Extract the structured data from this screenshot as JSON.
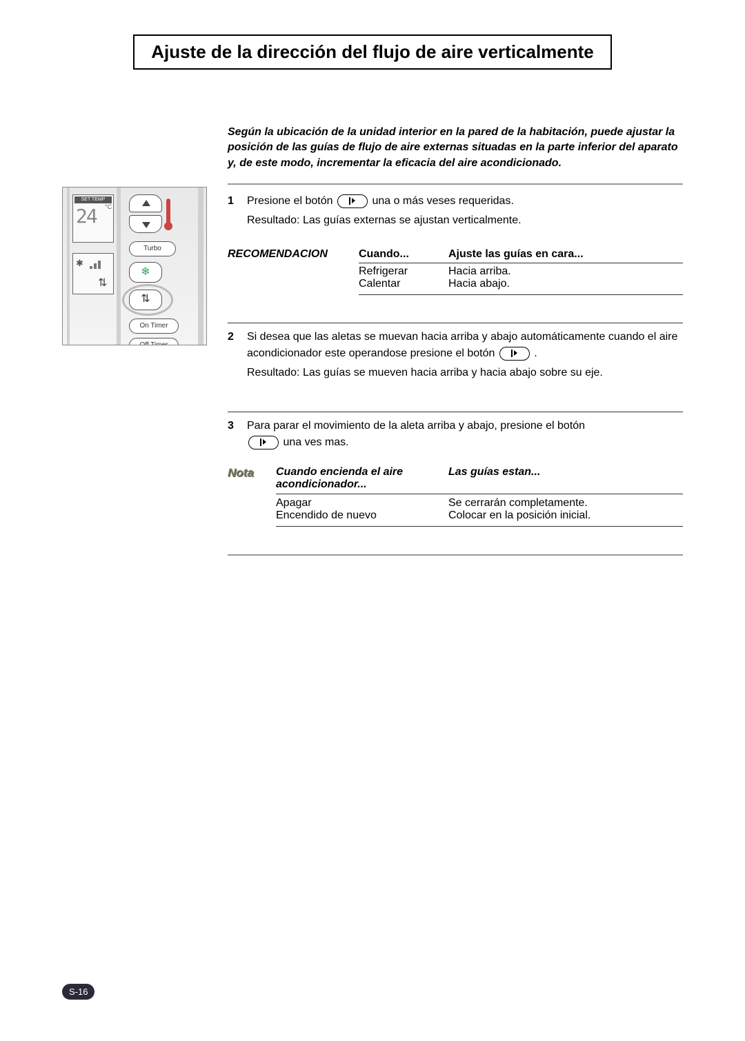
{
  "title": "Ajuste de la dirección del flujo de aire verticalmente",
  "intro": "Según la ubicación de la unidad interior en la pared de la habitación, puede ajustar la posición de las guías de flujo de aire externas situadas en la parte inferior del aparato y, de este modo, incrementar la eficacia del aire acondicionado.",
  "step1": {
    "num": "1",
    "line1a": "Presione el botón ",
    "line1b": " una o más veses requeridas.",
    "line2": "Resultado: Las guías externas se ajustan verticalmente."
  },
  "rec": {
    "label": "RECOMENDACION",
    "h1": "Cuando...",
    "h2": "Ajuste las guías en cara...",
    "rows": [
      {
        "c1": "Refrigerar",
        "c2": "Hacia arriba."
      },
      {
        "c1": "Calentar",
        "c2": "Hacia abajo."
      }
    ]
  },
  "step2": {
    "num": "2",
    "p1a": "Si desea que las aletas se muevan hacia arriba y abajo automáticamente cuando el aire acondicionador este operandose presione el botón ",
    "p1b": " .",
    "p2": "Resultado: Las guías se mueven hacia arriba y hacia abajo sobre su eje."
  },
  "step3": {
    "num": "3",
    "p1a": "Para parar el movimiento de la aleta arriba y abajo, presione el botón",
    "p1b": " una ves mas."
  },
  "nota": {
    "label": "Nota",
    "h1": "Cuando encienda el aire acondicionador...",
    "h2": "Las guías estan...",
    "rows": [
      {
        "c1": "Apagar",
        "c2": "Se cerrarán completamente."
      },
      {
        "c1": "Encendido de nuevo",
        "c2": "Colocar en la posición inicial."
      }
    ]
  },
  "remote": {
    "settemp": "SET TEMP",
    "digits": "24",
    "degc": "°C",
    "turbo": "Turbo",
    "ontimer": "On Timer",
    "offtimer": "Off Timer"
  },
  "pageNum": "S-16",
  "colors": {
    "hr": "#999999",
    "text": "#000000",
    "notaLabel": "#7a7a5a",
    "pageNumBg": "#2a2a3a"
  }
}
